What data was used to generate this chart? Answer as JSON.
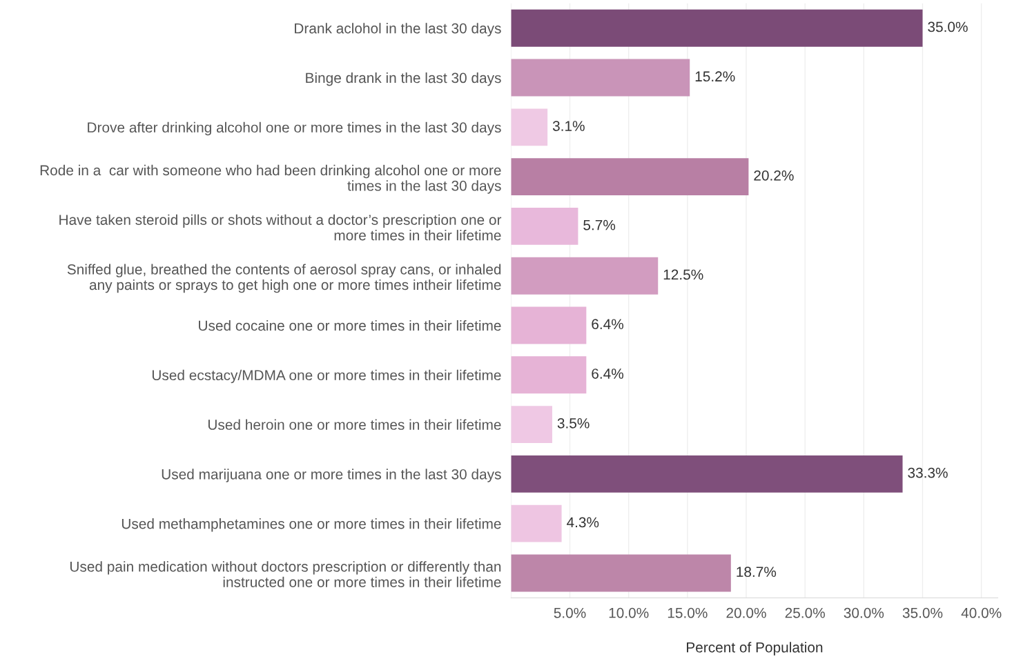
{
  "chart_data": {
    "type": "bar",
    "orientation": "horizontal",
    "xlabel": "Percent of Population",
    "categories": [
      "Drank aclohol in the last 30 days",
      "Binge drank in the last 30 days",
      "Drove after drinking alcohol one or more times in the last 30 days",
      "Rode in a  car with someone who had been drinking alcohol one or more\ntimes in the last 30 days",
      "Have taken steroid pills or shots without a doctor’s prescription one or\nmore times in their lifetime",
      "Sniffed glue, breathed the contents of aerosol spray cans, or inhaled\nany paints or sprays to get high one or more times intheir lifetime",
      "Used cocaine one or more times in their lifetime",
      "Used ecstacy/MDMA one or more times in their lifetime",
      "Used heroin one or more times in their lifetime",
      "Used marijuana one or more times in the last 30 days",
      "Used methamphetamines one or more times in their lifetime",
      "Used pain medication without doctors prescription or differently than\ninstructed one or more times in their lifetime"
    ],
    "values": [
      35.0,
      15.2,
      3.1,
      20.2,
      5.7,
      12.5,
      6.4,
      6.4,
      3.5,
      33.3,
      4.3,
      18.7
    ],
    "value_labels": [
      "35.0%",
      "15.2%",
      "3.1%",
      "20.2%",
      "5.7%",
      "12.5%",
      "6.4%",
      "6.4%",
      "3.5%",
      "33.3%",
      "4.3%",
      "18.7%"
    ],
    "colors": [
      "#7b4b77",
      "#c994b8",
      "#efc9e4",
      "#b87fa4",
      "#e8b8db",
      "#d29cc0",
      "#e6b3d6",
      "#e6b3d6",
      "#efc8e4",
      "#7f4f7b",
      "#eec5e2",
      "#bd86a9"
    ],
    "xlim": [
      0,
      41.4
    ],
    "xticks": [
      {
        "value": 0,
        "label": null
      },
      {
        "value": 5,
        "label": "5.0%"
      },
      {
        "value": 10,
        "label": "10.0%"
      },
      {
        "value": 15,
        "label": "15.0%"
      },
      {
        "value": 20,
        "label": "20.0%"
      },
      {
        "value": 25,
        "label": "25.0%"
      },
      {
        "value": 30,
        "label": "30.0%"
      },
      {
        "value": 35,
        "label": "35.0%"
      },
      {
        "value": 40,
        "label": "40.0%"
      }
    ],
    "grid": "x"
  }
}
